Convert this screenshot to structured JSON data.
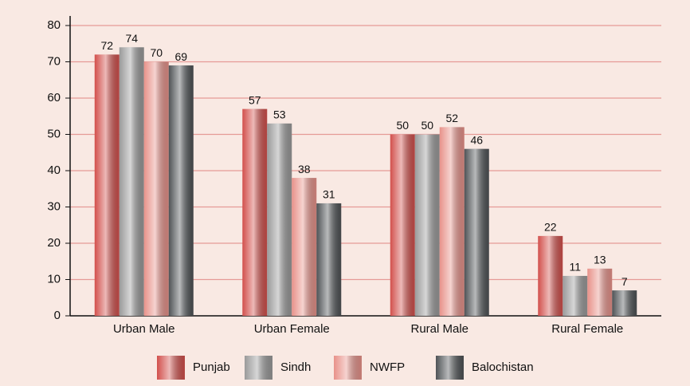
{
  "chart_data": {
    "type": "bar",
    "categories": [
      "Urban Male",
      "Urban Female",
      "Rural Male",
      "Rural Female"
    ],
    "series": [
      {
        "name": "Punjab",
        "color": "#d2504c",
        "values": [
          72,
          57,
          50,
          22
        ]
      },
      {
        "name": "Sindh",
        "color": "#9a9a9a",
        "values": [
          74,
          53,
          50,
          11
        ]
      },
      {
        "name": "NWFP",
        "color": "#e8928a",
        "values": [
          70,
          38,
          52,
          13
        ]
      },
      {
        "name": "Balochistan",
        "color": "#4f5356",
        "values": [
          69,
          31,
          46,
          7
        ]
      }
    ],
    "ylim": [
      0,
      80
    ],
    "yticks": [
      0,
      10,
      20,
      30,
      40,
      50,
      60,
      70,
      80
    ],
    "grid": true,
    "legend": "bottom"
  }
}
